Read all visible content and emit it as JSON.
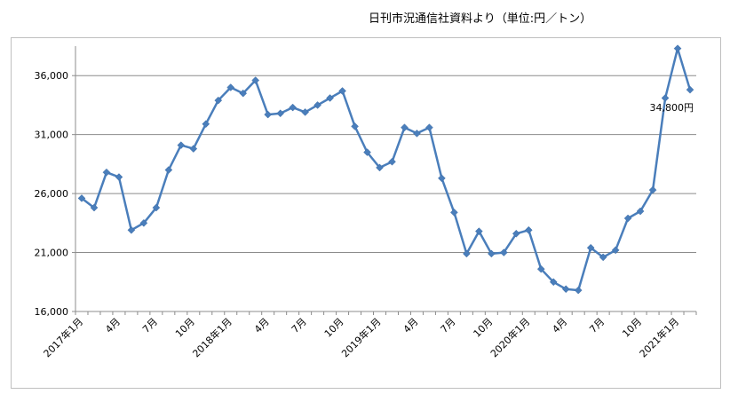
{
  "chart_data": {
    "type": "line",
    "title": "日刊市況通信社資料より（単位:円／トン）",
    "xlabel": "",
    "ylabel": "",
    "ylim": [
      16000,
      38500
    ],
    "yticks": [
      16000,
      21000,
      26000,
      31000,
      36000
    ],
    "ytick_labels": [
      "16,000",
      "21,000",
      "26,000",
      "31,000",
      "36,000"
    ],
    "grid": true,
    "legend": "none",
    "line_color": "#4a7ebb",
    "x": [
      "2017年1月",
      "2017年2月",
      "2017年3月",
      "2017年4月",
      "2017年5月",
      "2017年6月",
      "2017年7月",
      "2017年8月",
      "2017年9月",
      "2017年10月",
      "2017年11月",
      "2017年12月",
      "2018年1月",
      "2018年2月",
      "2018年3月",
      "2018年4月",
      "2018年5月",
      "2018年6月",
      "2018年7月",
      "2018年8月",
      "2018年9月",
      "2018年10月",
      "2018年11月",
      "2018年12月",
      "2019年1月",
      "2019年2月",
      "2019年3月",
      "2019年4月",
      "2019年5月",
      "2019年6月",
      "2019年7月",
      "2019年8月",
      "2019年9月",
      "2019年10月",
      "2019年11月",
      "2019年12月",
      "2020年1月",
      "2020年2月",
      "2020年3月",
      "2020年4月",
      "2020年5月",
      "2020年6月",
      "2020年7月",
      "2020年8月",
      "2020年9月",
      "2020年10月",
      "2020年11月",
      "2020年12月",
      "2021年1月",
      "2021年2月"
    ],
    "x_tick_labels": [
      "2017年1月",
      "4月",
      "7月",
      "10月",
      "2018年1月",
      "4月",
      "7月",
      "10月",
      "2019年1月",
      "4月",
      "7月",
      "10月",
      "2020年1月",
      "4月",
      "7月",
      "10月",
      "2021年1月"
    ],
    "series": [
      {
        "values": [
          25600,
          24800,
          27800,
          27400,
          22900,
          23500,
          24800,
          28000,
          30100,
          29800,
          31900,
          33900,
          35000,
          34500,
          35600,
          32700,
          32800,
          33300,
          32900,
          33500,
          34100,
          34700,
          31700,
          29500,
          28200,
          28700,
          31600,
          31100,
          31600,
          27300,
          24400,
          20900,
          22800,
          20900,
          21000,
          22600,
          22900,
          19600,
          18500,
          17900,
          17800,
          21400,
          20600,
          21200,
          23900,
          24500,
          26300,
          34100,
          38300,
          34800
        ]
      }
    ],
    "annotations": [
      {
        "point_index": 49,
        "text": "34,800円"
      }
    ]
  }
}
